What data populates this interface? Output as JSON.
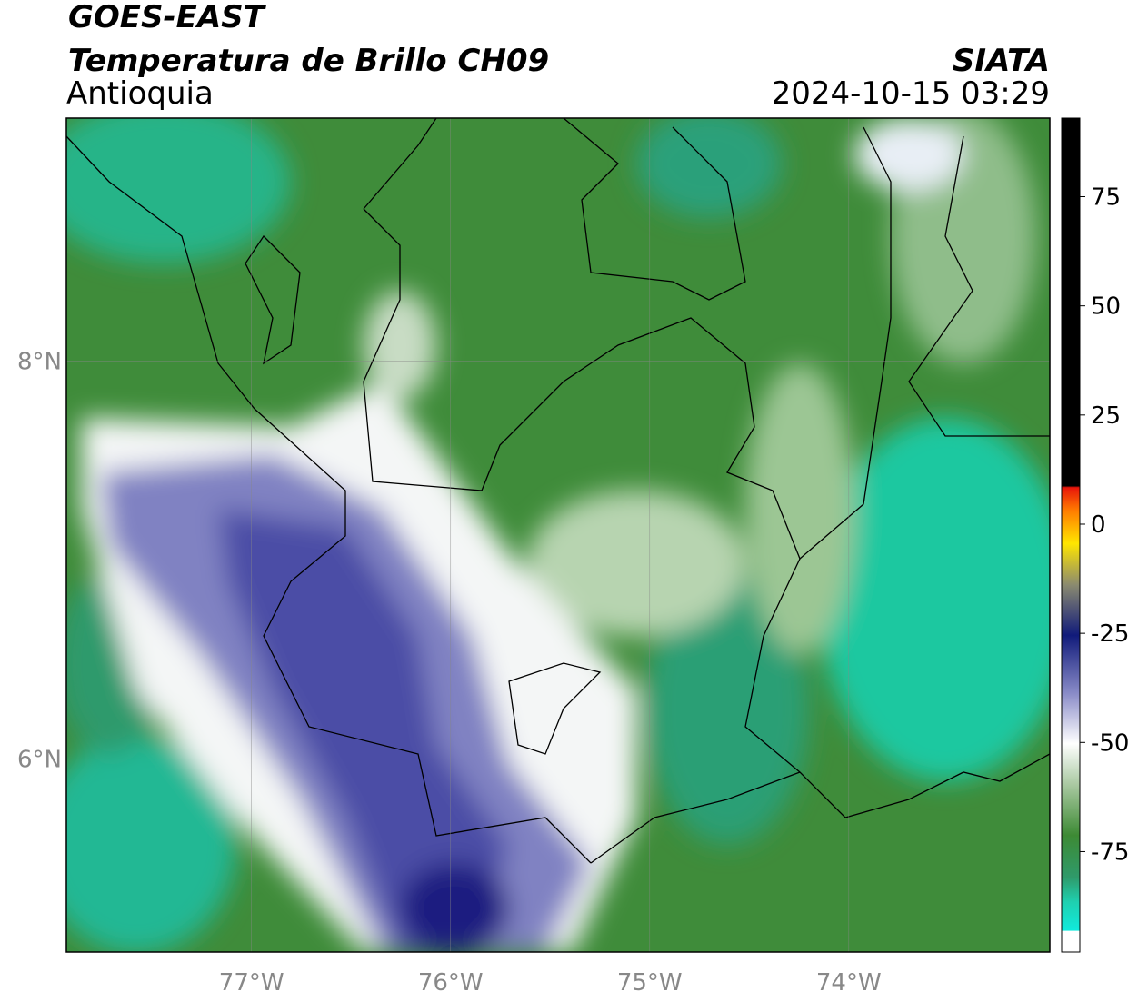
{
  "header": {
    "title": "GOES-EAST",
    "subtitle": "Temperatura de Brillo CH09",
    "region": "Antioquia",
    "source": "SIATA",
    "timestamp": "2024-10-15 03:29"
  },
  "map": {
    "xlim": [
      -77.93,
      -72.99
    ],
    "ylim": [
      5.03,
      9.22
    ],
    "xticks": [
      {
        "value": -77,
        "label": "77°W"
      },
      {
        "value": -76,
        "label": "76°W"
      },
      {
        "value": -75,
        "label": "75°W"
      },
      {
        "value": -74,
        "label": "74°W"
      }
    ],
    "yticks": [
      {
        "value": 8,
        "label": "8°N"
      },
      {
        "value": 6,
        "label": "6°N"
      }
    ],
    "grid": true
  },
  "colorbar": {
    "ylim": [
      -98,
      93
    ],
    "yticks": [
      75,
      50,
      25,
      0,
      -25,
      -50,
      -75
    ]
  }
}
